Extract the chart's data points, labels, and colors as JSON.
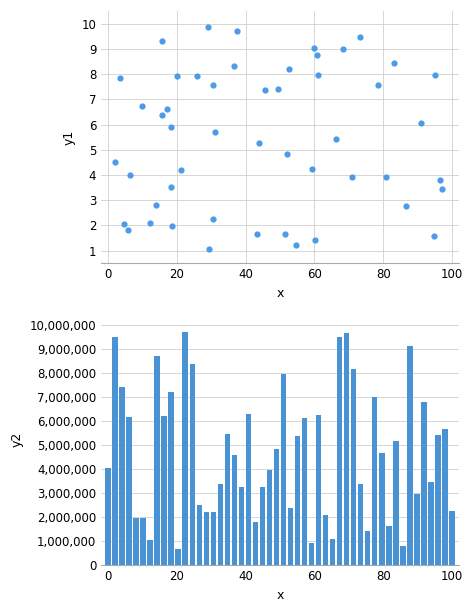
{
  "scatter_color": "#4c9be8",
  "bar_color": "#4992d3",
  "background_color": "#ffffff",
  "grid_color": "#d0d0d0",
  "scatter_ylabel": "y1",
  "scatter_xlabel": "x",
  "bar_ylabel": "y2",
  "bar_xlabel": "x",
  "scatter_ylim": [
    0.5,
    10.5
  ],
  "scatter_xlim": [
    -2,
    102
  ],
  "bar_ylim": [
    0,
    10500000
  ],
  "bar_xlim": [
    -2,
    102
  ],
  "scatter_yticks": [
    1,
    2,
    3,
    4,
    5,
    6,
    7,
    8,
    9,
    10
  ],
  "bar_yticks": [
    0,
    1000000,
    2000000,
    3000000,
    4000000,
    5000000,
    6000000,
    7000000,
    8000000,
    9000000,
    10000000
  ],
  "xticks": [
    0,
    20,
    40,
    60,
    80,
    100
  ],
  "n_scatter": 50,
  "n_bars": 50,
  "scatter_seed": 42,
  "bar_seed": 42,
  "bar_spacing": 2,
  "bar_width": 1.6
}
